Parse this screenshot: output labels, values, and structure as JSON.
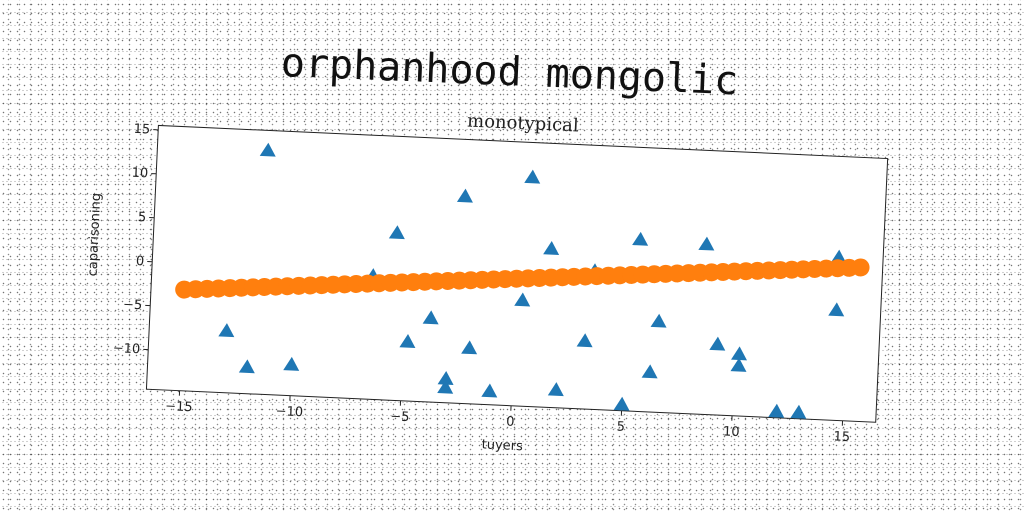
{
  "heading": "orphanhood mongolic",
  "chart_data": {
    "type": "scatter",
    "title": "monotypical",
    "xlabel": "tuyers",
    "ylabel": "caparisoning",
    "xlim": [
      -16.5,
      16.5
    ],
    "ylim": [
      -14.5,
      15.5
    ],
    "xticks": [
      -15,
      -10,
      -5,
      0,
      5,
      10,
      15
    ],
    "yticks": [
      -10,
      -5,
      0,
      5,
      10,
      15
    ],
    "grid": false,
    "series": [
      {
        "marker": "triangle",
        "color": "#1f77b4",
        "points": [
          [
            -11.5,
            13.2
          ],
          [
            -13,
            -7.5
          ],
          [
            -12,
            -11.5
          ],
          [
            -10,
            -11
          ],
          [
            -6.5,
            -0.5
          ],
          [
            -5.5,
            4.5
          ],
          [
            -4.8,
            -7.8
          ],
          [
            -3.8,
            -5
          ],
          [
            -3,
            -11.8
          ],
          [
            -3,
            -12.8
          ],
          [
            -2.5,
            9
          ],
          [
            -2,
            -8.2
          ],
          [
            -1,
            -13
          ],
          [
            0.3,
            -2.5
          ],
          [
            0.5,
            11.5
          ],
          [
            1.5,
            3.5
          ],
          [
            2,
            -12.5
          ],
          [
            3.2,
            -6.8
          ],
          [
            3.5,
            1.2
          ],
          [
            5,
            -15.5
          ],
          [
            5.5,
            5
          ],
          [
            6.2,
            -10
          ],
          [
            6.5,
            -4.2
          ],
          [
            8.5,
            4.8
          ],
          [
            9.2,
            -6.5
          ],
          [
            10.2,
            -7.5
          ],
          [
            10.2,
            -8.8
          ],
          [
            12,
            -16.5
          ],
          [
            13,
            -16
          ],
          [
            14.5,
            -2
          ],
          [
            14.5,
            4
          ]
        ]
      },
      {
        "marker": "circle",
        "color": "#ff7f0e",
        "x_start": -15,
        "x_end": 15.5,
        "y_start": -3,
        "y_end": 3,
        "count": 60
      }
    ]
  }
}
